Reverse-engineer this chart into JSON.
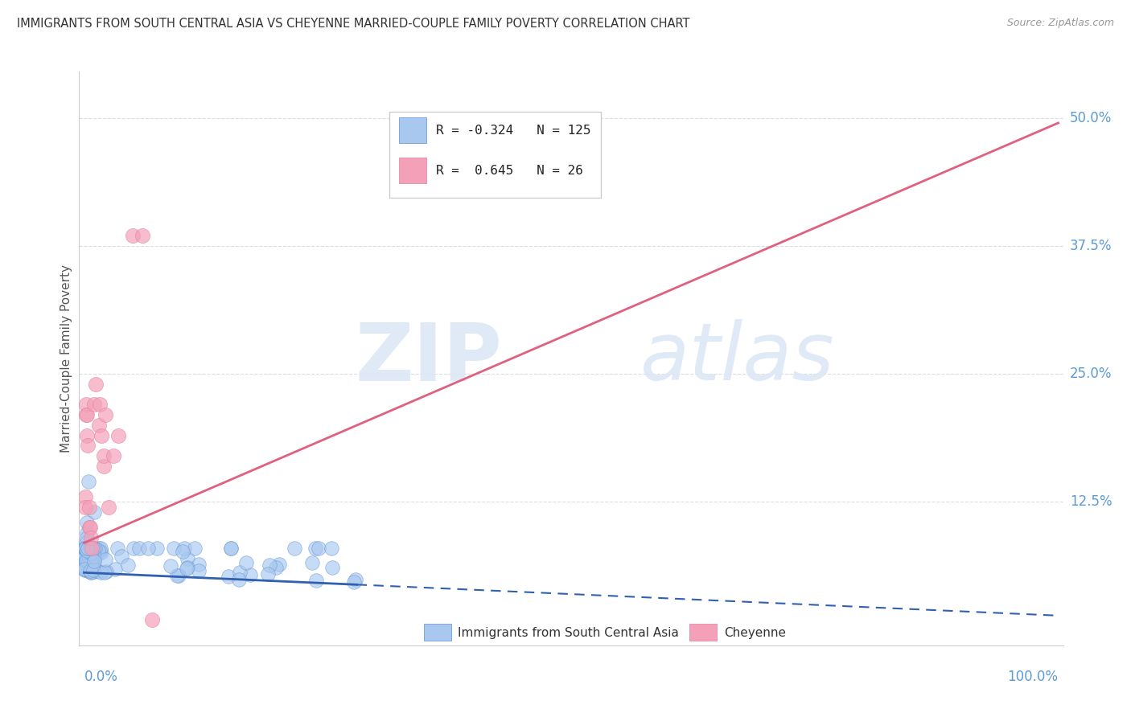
{
  "title": "IMMIGRANTS FROM SOUTH CENTRAL ASIA VS CHEYENNE MARRIED-COUPLE FAMILY POVERTY CORRELATION CHART",
  "source": "Source: ZipAtlas.com",
  "ylabel": "Married-Couple Family Poverty",
  "watermark_zip": "ZIP",
  "watermark_atlas": "atlas",
  "blue_label": "Immigrants from South Central Asia",
  "pink_label": "Cheyenne",
  "blue_R": -0.324,
  "blue_N": 125,
  "pink_R": 0.645,
  "pink_N": 26,
  "blue_color": "#A8C8F0",
  "pink_color": "#F4A0B8",
  "blue_line_color": "#3060B0",
  "pink_line_color": "#E06080",
  "blue_edge_color": "#6090D0",
  "pink_edge_color": "#E080A0",
  "background_color": "#FFFFFF",
  "grid_color": "#DDDDDD",
  "axis_tick_color": "#5B9BD5",
  "title_color": "#333333",
  "source_color": "#999999",
  "ylabel_color": "#555555",
  "legend_border_color": "#CCCCCC",
  "blue_trend_intercept": 0.056,
  "blue_trend_slope": -0.042,
  "pink_trend_intercept": 0.085,
  "pink_trend_slope": 0.41
}
